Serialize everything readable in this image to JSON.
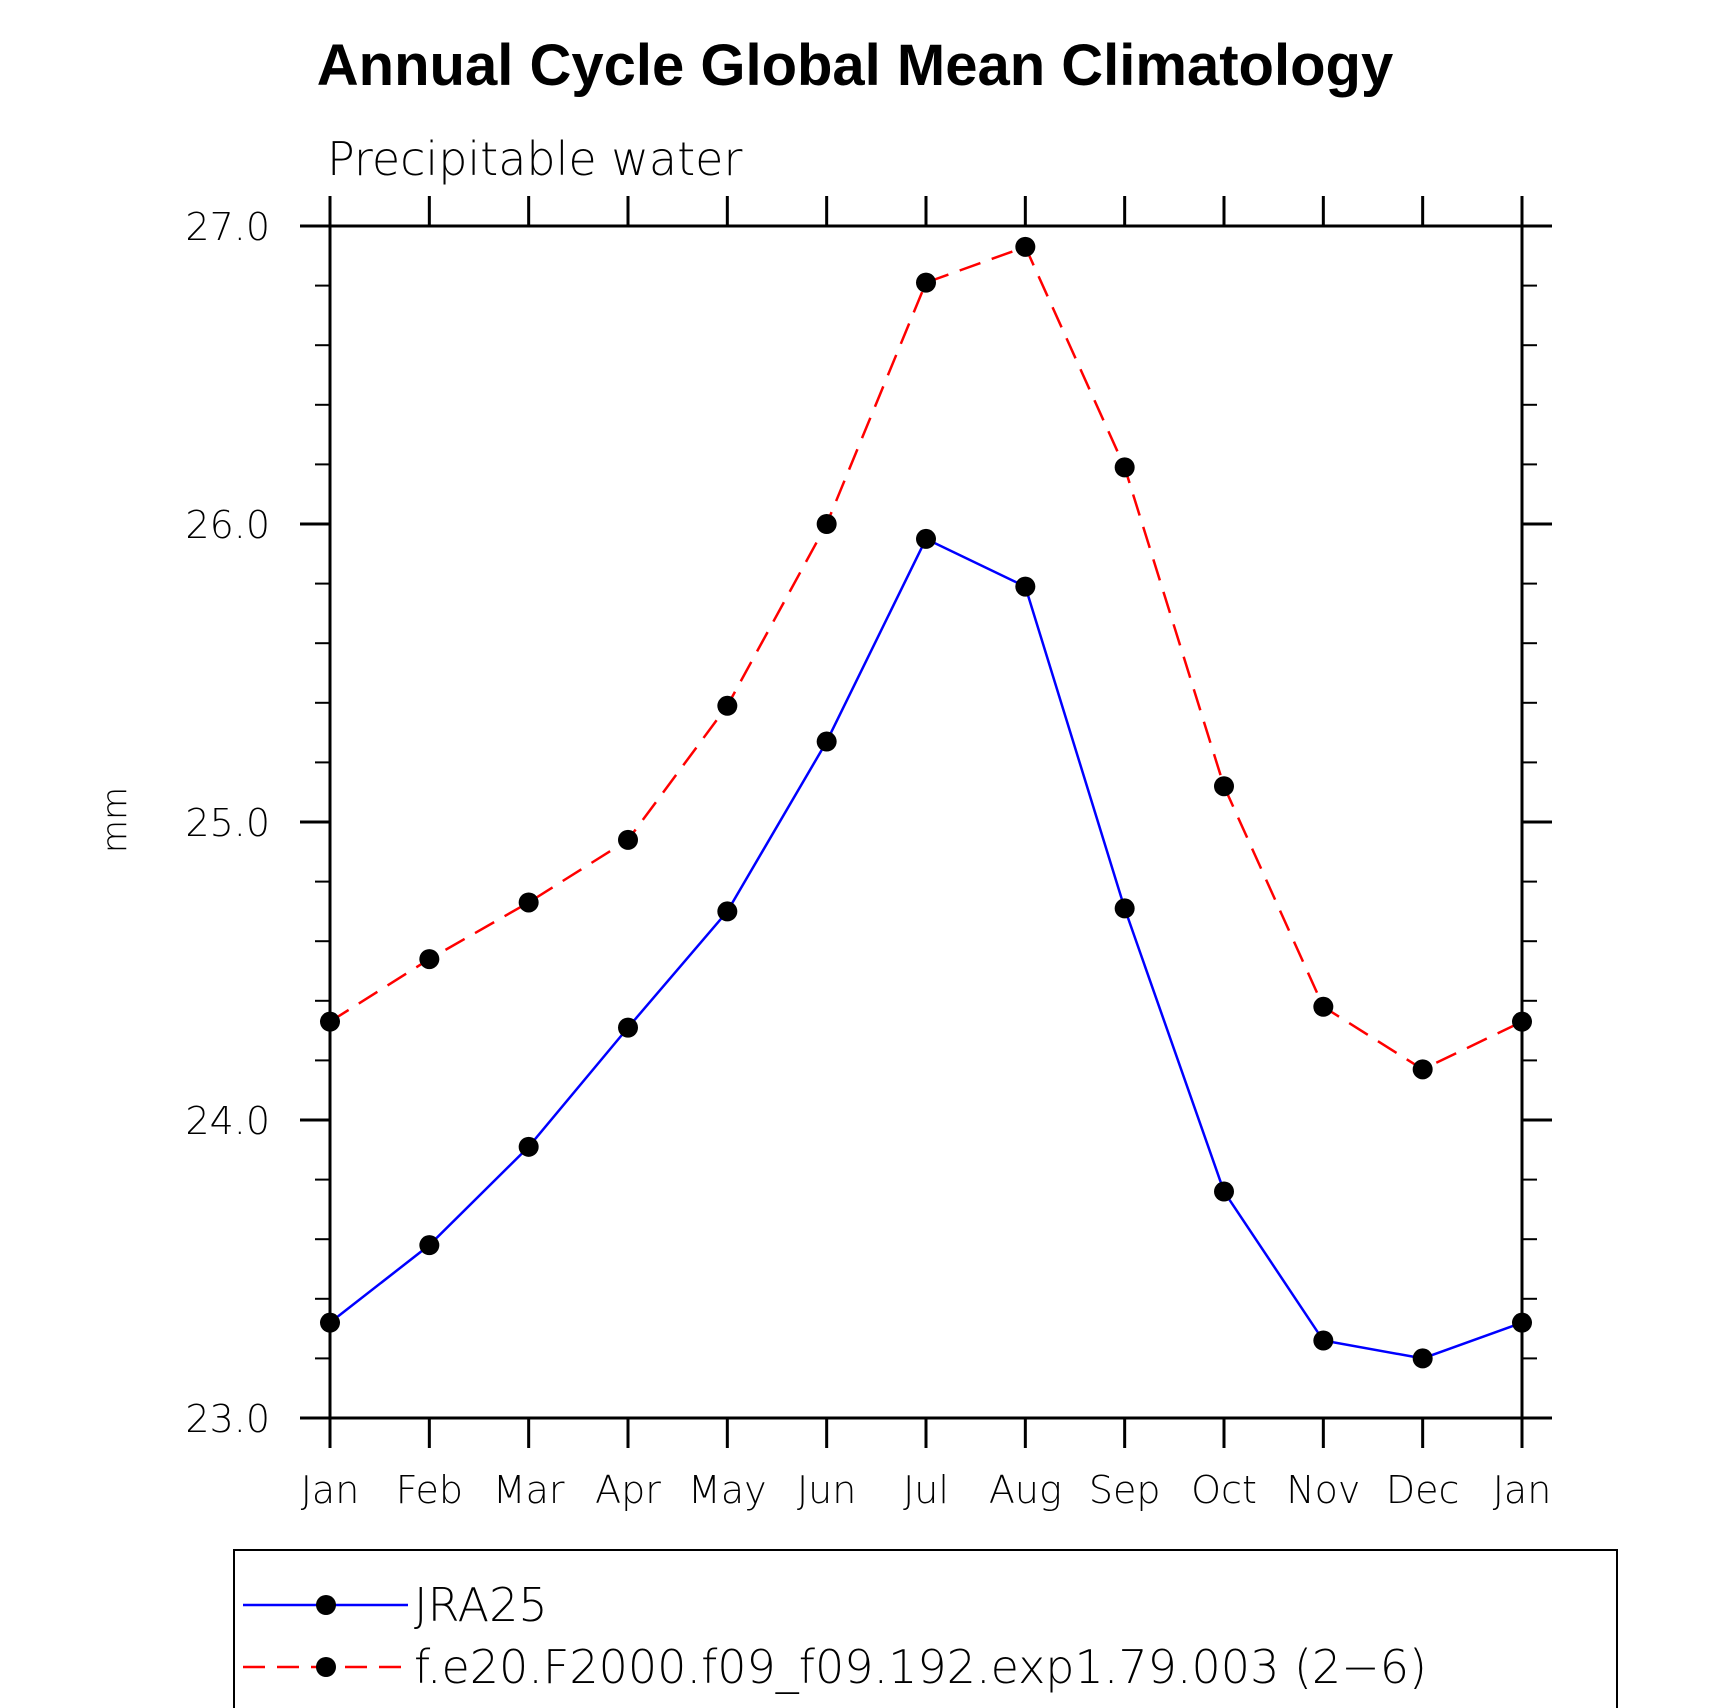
{
  "chart_data": {
    "type": "line",
    "title": "Annual Cycle Global Mean Climatology",
    "subtitle": "Precipitable water",
    "xlabel": "",
    "ylabel": "mm",
    "categories": [
      "Jan",
      "Feb",
      "Mar",
      "Apr",
      "May",
      "Jun",
      "Jul",
      "Aug",
      "Sep",
      "Oct",
      "Nov",
      "Dec",
      "Jan"
    ],
    "ylim": [
      23.0,
      27.0
    ],
    "yticks": [
      "23.0",
      "24.0",
      "25.0",
      "26.0",
      "27.0"
    ],
    "yticks_values": [
      23.0,
      24.0,
      25.0,
      26.0,
      27.0
    ],
    "minor_tick_step": 0.2,
    "legend_position": "bottom",
    "series": [
      {
        "name": "JRA25",
        "color": "#0000ff",
        "dash": "solid",
        "marker": "filled-circle",
        "values": [
          23.32,
          23.58,
          23.91,
          24.31,
          24.7,
          25.27,
          25.95,
          25.79,
          24.71,
          23.76,
          23.26,
          23.2,
          23.32
        ]
      },
      {
        "name": "f.e20.F2000.f09_f09.192.exp1.79.003 (2−6)",
        "color": "#ff0000",
        "dash": "dashed",
        "marker": "filled-circle",
        "values": [
          24.33,
          24.54,
          24.73,
          24.94,
          25.39,
          26.0,
          26.81,
          26.93,
          26.19,
          25.12,
          24.38,
          24.17,
          24.33
        ]
      }
    ]
  }
}
